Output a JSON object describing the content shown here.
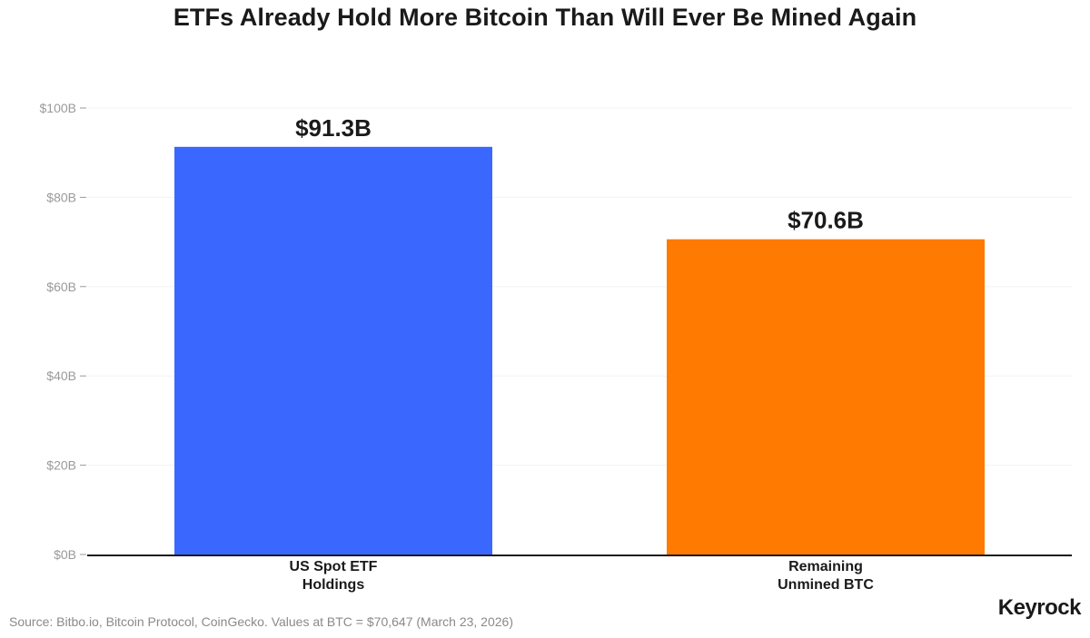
{
  "chart_data": {
    "type": "bar",
    "title": "ETFs Already Hold More Bitcoin Than Will Ever Be Mined Again",
    "categories": [
      [
        "US Spot ETF",
        "Holdings"
      ],
      [
        "Remaining",
        "Unmined BTC"
      ]
    ],
    "values": [
      91.3,
      70.6
    ],
    "value_labels": [
      "$91.3B",
      "$70.6B"
    ],
    "colors": [
      "#3a68ff",
      "#ff7a00"
    ],
    "ylim": [
      0,
      100
    ],
    "yticks": [
      0,
      20,
      40,
      60,
      80,
      100
    ],
    "ytick_labels": [
      "$0B",
      "$20B",
      "$40B",
      "$60B",
      "$80B",
      "$100B"
    ],
    "xlabel": "",
    "ylabel": "",
    "grid": true
  },
  "footer": {
    "source": "Source: Bitbo.io, Bitcoin Protocol, CoinGecko. Values at BTC = $70,647 (March 23, 2026)",
    "brand": "Keyrock"
  }
}
